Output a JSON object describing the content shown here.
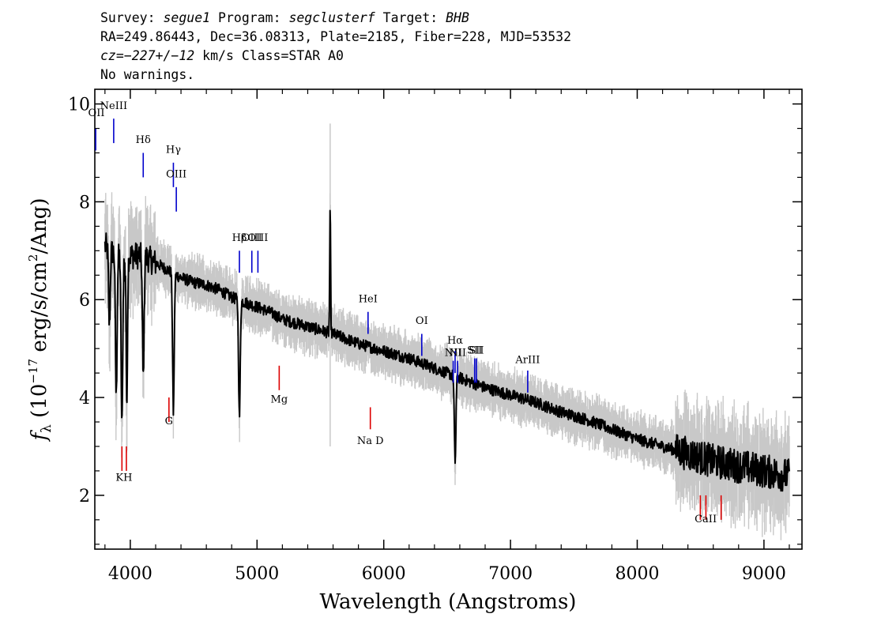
{
  "header": {
    "line1": {
      "survey_label": "Survey: ",
      "survey": "segue1",
      "program_label": " Program: ",
      "program": "segclusterf",
      "target_label": " Target: ",
      "target": "BHB"
    },
    "line2": "RA=249.86443, Dec=36.08313, Plate=2185, Fiber=228, MJD=53532",
    "line3": {
      "cz_label": "cz=",
      "cz": "−227+/−12",
      "rest": " km/s Class=STAR A0"
    },
    "line4": "No warnings."
  },
  "chart_data": {
    "type": "line",
    "xlabel": "Wavelength (Angstroms)",
    "ylabel": "fλ (10⁻¹⁷ erg/s/cm²/Ang)",
    "xlim": [
      3720,
      9300
    ],
    "ylim": [
      0.9,
      10.3
    ],
    "x_ticks": [
      4000,
      5000,
      6000,
      7000,
      8000,
      9000
    ],
    "y_ticks": [
      2,
      4,
      6,
      8,
      10
    ],
    "x_tick_labels": [
      "4000",
      "5000",
      "6000",
      "7000",
      "8000",
      "9000"
    ],
    "y_tick_labels": [
      "2",
      "4",
      "6",
      "8",
      "10"
    ],
    "colors": {
      "spectrum": "#000000",
      "noise_band": "#c8c8c8",
      "emission_lines": "#0000cc",
      "absorption_lines": "#dd0000"
    },
    "continuum": [
      [
        3800,
        7.1
      ],
      [
        3900,
        6.9
      ],
      [
        4000,
        6.9
      ],
      [
        4100,
        6.9
      ],
      [
        4200,
        6.75
      ],
      [
        4300,
        6.6
      ],
      [
        4400,
        6.45
      ],
      [
        4500,
        6.35
      ],
      [
        4600,
        6.3
      ],
      [
        4700,
        6.2
      ],
      [
        4800,
        6.05
      ],
      [
        4900,
        5.95
      ],
      [
        5000,
        5.85
      ],
      [
        5100,
        5.75
      ],
      [
        5200,
        5.6
      ],
      [
        5400,
        5.45
      ],
      [
        5600,
        5.3
      ],
      [
        5800,
        5.1
      ],
      [
        6000,
        4.95
      ],
      [
        6200,
        4.8
      ],
      [
        6400,
        4.6
      ],
      [
        6600,
        4.4
      ],
      [
        6800,
        4.2
      ],
      [
        7000,
        4.05
      ],
      [
        7200,
        3.9
      ],
      [
        7400,
        3.7
      ],
      [
        7600,
        3.55
      ],
      [
        7800,
        3.35
      ],
      [
        8000,
        3.15
      ],
      [
        8200,
        3.0
      ],
      [
        8400,
        2.85
      ],
      [
        8600,
        2.7
      ],
      [
        8800,
        2.6
      ],
      [
        9000,
        2.5
      ],
      [
        9200,
        2.4
      ]
    ],
    "absorption_features": [
      {
        "x": 3835,
        "min": 5.5
      },
      {
        "x": 3889,
        "min": 4.0
      },
      {
        "x": 3934,
        "min": 3.4
      },
      {
        "x": 3970,
        "min": 3.2
      },
      {
        "x": 4102,
        "min": 4.4
      },
      {
        "x": 4340,
        "min": 3.7
      },
      {
        "x": 4861,
        "min": 3.6
      },
      {
        "x": 6563,
        "min": 2.7
      }
    ],
    "emission_features": [
      {
        "x": 3965,
        "max": 8.8
      },
      {
        "x": 5577,
        "max": 7.8
      }
    ],
    "emission_lines": [
      {
        "label": "OII",
        "x": 3727,
        "label_y": 9.75,
        "top": 9.5,
        "bottom": 9.05
      },
      {
        "label": "NeIII",
        "x": 3869,
        "label_y": 9.9,
        "top": 9.7,
        "bottom": 9.2
      },
      {
        "label": "Hδ",
        "x": 4102,
        "label_y": 9.2,
        "top": 9.0,
        "bottom": 8.5
      },
      {
        "label": "Hγ",
        "x": 4340,
        "label_y": 9.0,
        "top": 8.8,
        "bottom": 8.3
      },
      {
        "label": "OIII",
        "x": 4363,
        "label_y": 8.5,
        "top": 8.3,
        "bottom": 7.8
      },
      {
        "label": "Hβ",
        "x": 4861,
        "label_y": 7.2,
        "top": 7.0,
        "bottom": 6.55
      },
      {
        "label": "OIII",
        "x": 4959,
        "label_y": 7.2,
        "top": 7.0,
        "bottom": 6.55
      },
      {
        "label": "OIII",
        "x": 5007,
        "label_y": 7.2,
        "top": 7.0,
        "bottom": 6.55
      },
      {
        "label": "HeI",
        "x": 5876,
        "label_y": 5.95,
        "top": 5.75,
        "bottom": 5.3
      },
      {
        "label": "OI",
        "x": 6300,
        "label_y": 5.5,
        "top": 5.3,
        "bottom": 4.85
      },
      {
        "label": "NII",
        "x": 6548,
        "label_y": 4.85,
        "top": 4.75,
        "bottom": 4.3
      },
      {
        "label": "Hα",
        "x": 6563,
        "label_y": 5.1,
        "top": 4.95,
        "bottom": 4.5
      },
      {
        "label": "NII",
        "x": 6583,
        "label_y": 4.85,
        "top": 4.75,
        "bottom": 4.3
      },
      {
        "label": "SII",
        "x": 6717,
        "label_y": 4.9,
        "top": 4.8,
        "bottom": 4.3
      },
      {
        "label": "SII",
        "x": 6731,
        "label_y": 4.9,
        "top": 4.8,
        "bottom": 4.3
      },
      {
        "label": "ArIII",
        "x": 7136,
        "label_y": 4.7,
        "top": 4.55,
        "bottom": 4.1
      }
    ],
    "absorption_lines": [
      {
        "label": "G",
        "x": 4305,
        "label_y": 3.45,
        "top": 4.0,
        "bottom": 3.5
      },
      {
        "label": "Mg",
        "x": 5175,
        "label_y": 3.9,
        "top": 4.65,
        "bottom": 4.15
      },
      {
        "label": "Na D",
        "x": 5894,
        "label_y": 3.05,
        "top": 3.8,
        "bottom": 3.35
      },
      {
        "label": "KH",
        "x": 3950,
        "label_y": 2.3,
        "top": 3.0,
        "bottom": 2.5,
        "marks": [
          3934,
          3969
        ]
      },
      {
        "label": "CaII",
        "x": 8540,
        "label_y": 1.45,
        "top": 2.0,
        "bottom": 1.5,
        "marks": [
          8498,
          8542,
          8662
        ]
      }
    ]
  }
}
